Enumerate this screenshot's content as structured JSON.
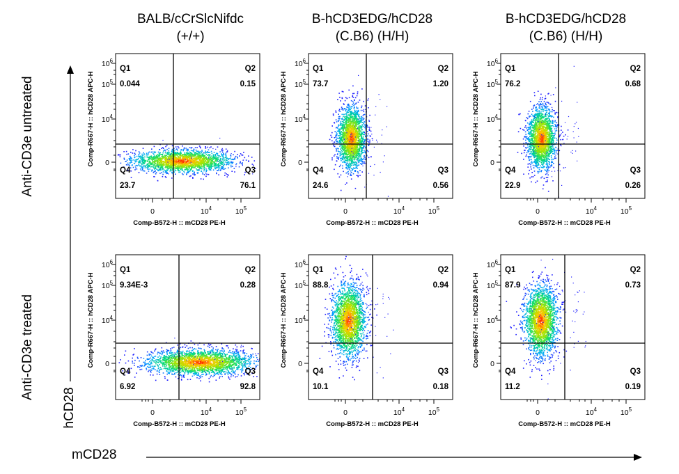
{
  "columns": [
    {
      "line1": "BALB/cCrSlcNifdc",
      "line2": "(+/+)"
    },
    {
      "line1": "B-hCD3EDG/hCD28",
      "line2": "(C.B6) (H/H)"
    },
    {
      "line1": "B-hCD3EDG/hCD28",
      "line2": "(C.B6) (H/H)"
    }
  ],
  "rows": [
    "Anti-CD3e untreated",
    "Anti-CD3e treated"
  ],
  "global_axes": {
    "y": "hCD28",
    "x": "mCD28"
  },
  "colors": {
    "line": "#000000",
    "scatter_low": "#1f1fff",
    "scatter_high": "#ff2000"
  },
  "chart_data": [
    {
      "type": "scatter",
      "row": 0,
      "col": 0,
      "xlabel": "Comp-B572-H :: mCD28 PE-H",
      "ylabel": "Comp-R667-H :: hCD28 APC-H",
      "x_ticks": [
        "0",
        "10^4",
        "10^5"
      ],
      "y_ticks": [
        "0",
        "10^4",
        "10^5",
        "10^6"
      ],
      "quadrants": [
        {
          "name": "Q1",
          "value": "0.044"
        },
        {
          "name": "Q2",
          "value": "0.15"
        },
        {
          "name": "Q3",
          "value": "76.1"
        },
        {
          "name": "Q4",
          "value": "23.7"
        }
      ]
    },
    {
      "type": "scatter",
      "row": 0,
      "col": 1,
      "xlabel": "Comp-B572-H :: mCD28 PE-H",
      "ylabel": "Comp-R667-H :: hCD28 APC-H",
      "x_ticks": [
        "0",
        "10^4",
        "10^5"
      ],
      "y_ticks": [
        "0",
        "10^4",
        "10^5",
        "10^6"
      ],
      "quadrants": [
        {
          "name": "Q1",
          "value": "73.7"
        },
        {
          "name": "Q2",
          "value": "1.20"
        },
        {
          "name": "Q3",
          "value": "0.56"
        },
        {
          "name": "Q4",
          "value": "24.6"
        }
      ]
    },
    {
      "type": "scatter",
      "row": 0,
      "col": 2,
      "xlabel": "Comp-B572-H :: mCD28 PE-H",
      "ylabel": "Comp-R667-H :: hCD28 APC-H",
      "x_ticks": [
        "0",
        "10^4",
        "10^5"
      ],
      "y_ticks": [
        "0",
        "10^4",
        "10^5",
        "10^6"
      ],
      "quadrants": [
        {
          "name": "Q1",
          "value": "76.2"
        },
        {
          "name": "Q2",
          "value": "0.68"
        },
        {
          "name": "Q3",
          "value": "0.26"
        },
        {
          "name": "Q4",
          "value": "22.9"
        }
      ]
    },
    {
      "type": "scatter",
      "row": 1,
      "col": 0,
      "xlabel": "Comp-B572-H :: mCD28 PE-H",
      "ylabel": "Comp-R667-H :: hCD28 APC-H",
      "x_ticks": [
        "0",
        "10^4",
        "10^5"
      ],
      "y_ticks": [
        "0",
        "10^4",
        "10^5",
        "10^6"
      ],
      "quadrants": [
        {
          "name": "Q1",
          "value": "9.34E-3"
        },
        {
          "name": "Q2",
          "value": "0.28"
        },
        {
          "name": "Q3",
          "value": "92.8"
        },
        {
          "name": "Q4",
          "value": "6.92"
        }
      ]
    },
    {
      "type": "scatter",
      "row": 1,
      "col": 1,
      "xlabel": "Comp-B572-H :: mCD28 PE-H",
      "ylabel": "Comp-R667-H :: hCD28 APC-H",
      "x_ticks": [
        "0",
        "10^4",
        "10^5"
      ],
      "y_ticks": [
        "0",
        "10^4",
        "10^5",
        "10^6"
      ],
      "quadrants": [
        {
          "name": "Q1",
          "value": "88.8"
        },
        {
          "name": "Q2",
          "value": "0.94"
        },
        {
          "name": "Q3",
          "value": "0.18"
        },
        {
          "name": "Q4",
          "value": "10.1"
        }
      ]
    },
    {
      "type": "scatter",
      "row": 1,
      "col": 2,
      "xlabel": "Comp-B572-H :: mCD28 PE-H",
      "ylabel": "Comp-R667-H :: hCD28 APC-H",
      "x_ticks": [
        "0",
        "10^4",
        "10^5"
      ],
      "y_ticks": [
        "0",
        "10^4",
        "10^5",
        "10^6"
      ],
      "quadrants": [
        {
          "name": "Q1",
          "value": "87.9"
        },
        {
          "name": "Q2",
          "value": "0.73"
        },
        {
          "name": "Q3",
          "value": "0.19"
        },
        {
          "name": "Q4",
          "value": "11.2"
        }
      ]
    }
  ]
}
